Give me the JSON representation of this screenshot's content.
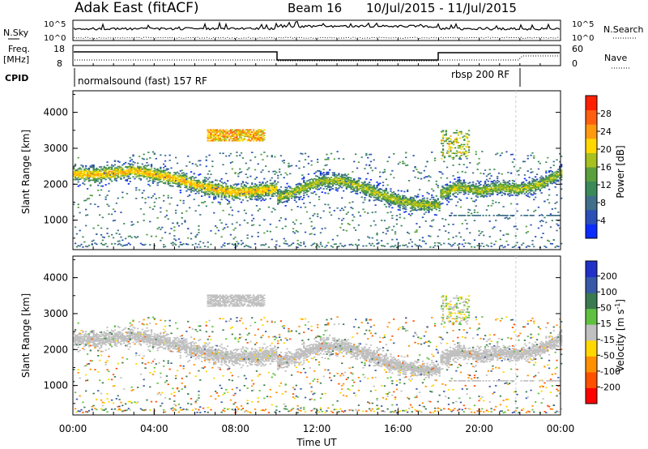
{
  "header": {
    "station": "Adak East (fitACF)",
    "beam": "Beam 16",
    "dates": "10/Jul/2015 - 11/Jul/2015"
  },
  "panels": {
    "nsky": {
      "label": "N.Sky",
      "right_label": "N.Search",
      "ticks_left": [
        "10^5",
        "10^0"
      ],
      "ticks_right": [
        "10^5",
        "10^0"
      ]
    },
    "freq": {
      "label_top": "Freq.",
      "label_unit": "[MHz]",
      "right_label": "Nave",
      "ticks_left": [
        "18",
        "8"
      ],
      "ticks_right": [
        "60",
        "0"
      ]
    },
    "cpid": {
      "label": "CPID",
      "mode1": "normalsound (fast) 157 RF",
      "mode2": "rbsp 200 RF"
    }
  },
  "colors": {
    "power": [
      "#0a2cff",
      "#2a4fb8",
      "#3f6f8a",
      "#3c8a5a",
      "#5aa03c",
      "#a8c020",
      "#ffd800",
      "#ff9a10",
      "#ff6010",
      "#ff2000"
    ],
    "velocity": [
      "#2030c8",
      "#3858a8",
      "#3a7a50",
      "#60c040",
      "#c0c0c0",
      "#ffd800",
      "#ff9000",
      "#ff5000",
      "#ff0000"
    ]
  },
  "chart_data": [
    {
      "type": "heatmap",
      "name": "power",
      "ylabel": "Slant Range [km]",
      "yticks": [
        "1000",
        "2000",
        "3000",
        "4000"
      ],
      "ylim": [
        180,
        4600
      ],
      "xlim": [
        0,
        24
      ],
      "colorbar": {
        "label": "Power [dB]",
        "ticks": [
          "4",
          "8",
          "12",
          "16",
          "20",
          "24",
          "28"
        ],
        "range": [
          0,
          32
        ]
      },
      "bands": [
        {
          "t": [
            0,
            1,
            2,
            3,
            4,
            5,
            6,
            7,
            8,
            9,
            10
          ],
          "r": [
            2280,
            2260,
            2300,
            2360,
            2260,
            2140,
            1980,
            1840,
            1760,
            1800,
            1860
          ],
          "width": 190,
          "peak": 22
        },
        {
          "t": [
            10,
            11,
            12,
            13,
            14,
            15,
            16,
            17,
            18
          ],
          "r": [
            1600,
            1800,
            2050,
            2100,
            1950,
            1720,
            1540,
            1420,
            1400
          ],
          "width": 180,
          "peak": 18
        },
        {
          "t": [
            18,
            19,
            20,
            21,
            22,
            23,
            24
          ],
          "r": [
            1700,
            1920,
            1800,
            1900,
            1850,
            2000,
            2300
          ],
          "width": 170,
          "peak": 18
        }
      ]
    },
    {
      "type": "heatmap",
      "name": "velocity",
      "ylabel": "Slant Range [km]",
      "yticks": [
        "1000",
        "2000",
        "3000",
        "4000"
      ],
      "ylim": [
        180,
        4600
      ],
      "xlim": [
        0,
        24
      ],
      "xticks": [
        "00:00",
        "04:00",
        "08:00",
        "12:00",
        "16:00",
        "20:00",
        "00:00"
      ],
      "xlabel": "Time UT",
      "colorbar": {
        "label": "Velocity [m s-1]",
        "ticks": [
          "200",
          "100",
          "50",
          "15",
          "-15",
          "-50",
          "-100",
          "-200"
        ]
      }
    }
  ]
}
